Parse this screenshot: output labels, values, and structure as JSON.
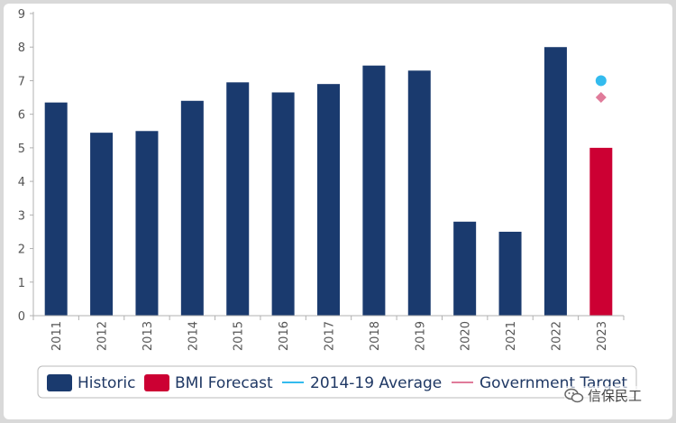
{
  "chart_data": {
    "type": "bar",
    "categories": [
      "2011",
      "2012",
      "2013",
      "2014",
      "2015",
      "2016",
      "2017",
      "2018",
      "2019",
      "2020",
      "2021",
      "2022",
      "2023"
    ],
    "series": [
      {
        "name": "Historic",
        "color": "#1a3a6e",
        "values": [
          6.35,
          5.45,
          5.5,
          6.4,
          6.95,
          6.65,
          6.9,
          7.45,
          7.3,
          2.8,
          2.5,
          8.0,
          null
        ]
      },
      {
        "name": "BMI Forecast",
        "color": "#cc0033",
        "values": [
          null,
          null,
          null,
          null,
          null,
          null,
          null,
          null,
          null,
          null,
          null,
          null,
          5.0
        ]
      }
    ],
    "points": [
      {
        "name": "2014-19 Average",
        "color": "#33bbee",
        "marker": "circle",
        "x": "2023",
        "y": 7.0
      },
      {
        "name": "Government Target",
        "color": "#e07b9a",
        "marker": "diamond",
        "x": "2023",
        "y": 6.5
      }
    ],
    "ylim": [
      0,
      9
    ],
    "yticks": [
      "0",
      "1",
      "2",
      "3",
      "4",
      "5",
      "6",
      "7",
      "8",
      "9"
    ],
    "title": "",
    "xlabel": "",
    "ylabel": "",
    "grid": false,
    "legend_position": "bottom"
  },
  "watermark": {
    "text": "信保民工",
    "icon": "wechat-icon"
  }
}
